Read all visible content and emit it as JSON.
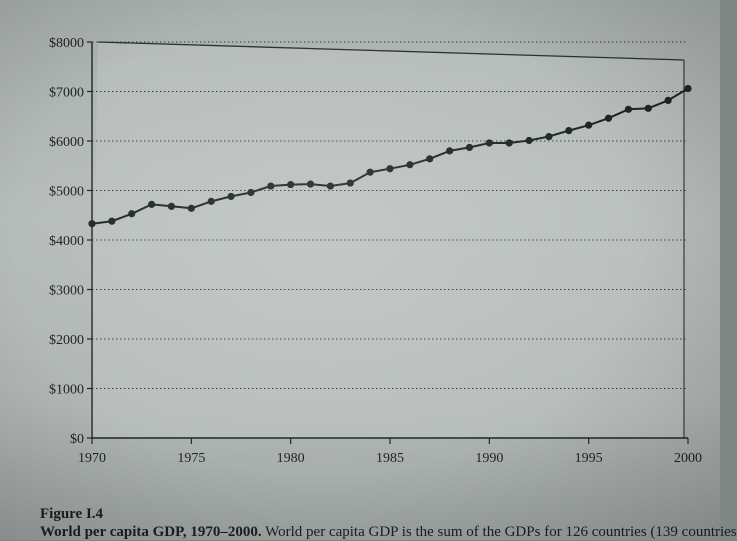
{
  "chart_data": {
    "type": "line",
    "title": "",
    "xlabel": "",
    "ylabel": "",
    "xlim": [
      1970,
      2000
    ],
    "ylim": [
      0,
      8000
    ],
    "x_ticks": [
      "1970",
      "1975",
      "1980",
      "1985",
      "1990",
      "1995",
      "2000"
    ],
    "y_ticks": [
      "$0",
      "$1000",
      "$2000",
      "$3000",
      "$4000",
      "$5000",
      "$6000",
      "$7000",
      "$8000"
    ],
    "grid": "horizontal dotted",
    "series": [
      {
        "x": [
          1970,
          1971,
          1972,
          1973,
          1974,
          1975,
          1976,
          1977,
          1978,
          1979,
          1980,
          1981,
          1982,
          1983,
          1984,
          1985,
          1986,
          1987,
          1988,
          1989,
          1990,
          1991,
          1992,
          1993,
          1994,
          1995,
          1996,
          1997,
          1998,
          1999,
          2000
        ],
        "values": [
          4330,
          4380,
          4530,
          4720,
          4680,
          4640,
          4780,
          4880,
          4960,
          5090,
          5120,
          5130,
          5090,
          5150,
          5370,
          5440,
          5520,
          5640,
          5800,
          5870,
          5960,
          5960,
          6010,
          6090,
          6210,
          6320,
          6460,
          6640,
          6660,
          6820,
          7060
        ]
      }
    ],
    "line_color": "#1f2626"
  },
  "caption": {
    "figure_label": "Figure I.4",
    "title": "World per capita GDP, 1970–2000.",
    "text": " World per capita GDP is the sum of the GDPs for 126 countries (139 countries"
  }
}
